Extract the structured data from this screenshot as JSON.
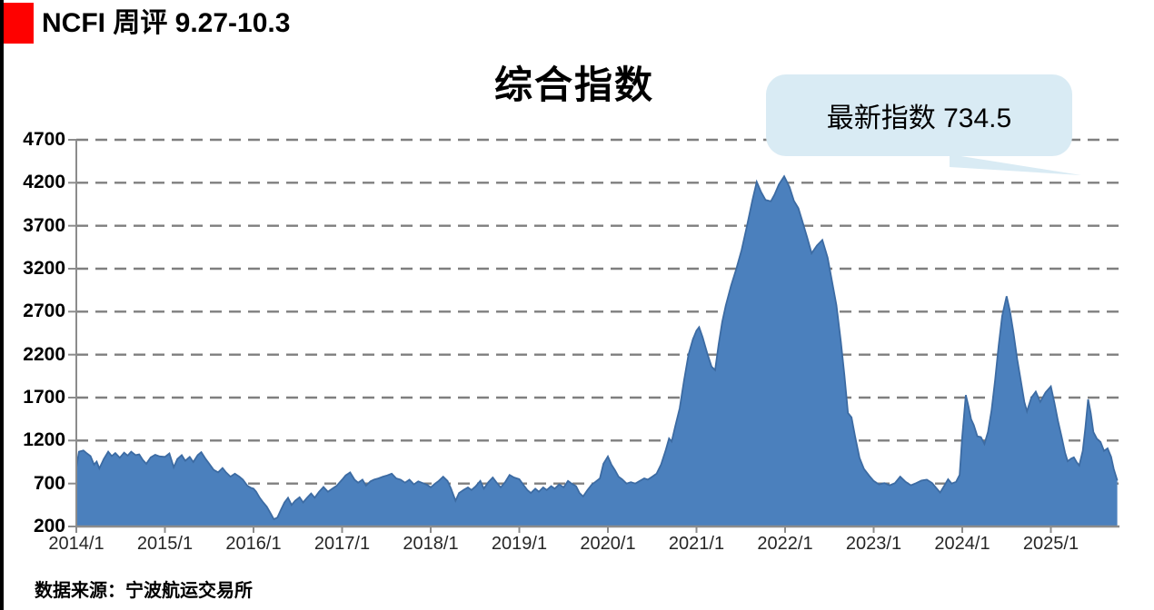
{
  "page": {
    "header": {
      "title": "NCFI 周评 9.27-10.3"
    },
    "source": "数据来源：宁波航运交易所"
  },
  "chart_data": {
    "type": "area",
    "title": "综合指数",
    "annotation": {
      "text": "最新指数 734.5",
      "latest_value": 734.5
    },
    "legend": "none",
    "grid": "horizontal-dashed",
    "x_axis": {
      "tick_labels": [
        "2014/1",
        "2015/1",
        "2016/1",
        "2017/1",
        "2018/1",
        "2019/1",
        "2020/1",
        "2021/1",
        "2022/1",
        "2023/1",
        "2024/1",
        "2025/1"
      ],
      "tick_years": [
        2014,
        2015,
        2016,
        2017,
        2018,
        2019,
        2020,
        2021,
        2022,
        2023,
        2024,
        2025
      ],
      "range_years": [
        2014.0,
        2025.8
      ]
    },
    "y_axis": {
      "ticks": [
        200,
        700,
        1200,
        1700,
        2200,
        2700,
        3200,
        3700,
        4200,
        4700
      ],
      "gridlines": [
        700,
        1200,
        1700,
        2200,
        2700,
        3200,
        3700,
        4200,
        4700
      ],
      "min": 200,
      "max": 4700
    },
    "colors": {
      "area_fill": "#4b80bd",
      "area_line": "#3c6ba3",
      "gridline": "#7f7f7f",
      "axis": "#8c8c8c",
      "callout_bg": "#d9ebf4",
      "red_square": "#fe0100",
      "x_label": "#262626",
      "y_label": "#000000"
    },
    "series": [
      {
        "name": "NCFI综合指数",
        "points": [
          [
            2014.0,
            880
          ],
          [
            2014.03,
            1070
          ],
          [
            2014.08,
            1085
          ],
          [
            2014.12,
            1050
          ],
          [
            2014.16,
            1020
          ],
          [
            2014.2,
            920
          ],
          [
            2014.23,
            955
          ],
          [
            2014.26,
            875
          ],
          [
            2014.31,
            985
          ],
          [
            2014.36,
            1070
          ],
          [
            2014.4,
            1020
          ],
          [
            2014.44,
            1055
          ],
          [
            2014.49,
            1000
          ],
          [
            2014.54,
            1060
          ],
          [
            2014.58,
            1025
          ],
          [
            2014.62,
            1070
          ],
          [
            2014.67,
            1030
          ],
          [
            2014.71,
            1040
          ],
          [
            2014.75,
            975
          ],
          [
            2014.79,
            930
          ],
          [
            2014.84,
            1005
          ],
          [
            2014.89,
            1035
          ],
          [
            2014.94,
            1015
          ],
          [
            2015.0,
            1010
          ],
          [
            2015.05,
            1050
          ],
          [
            2015.1,
            890
          ],
          [
            2015.14,
            985
          ],
          [
            2015.19,
            1030
          ],
          [
            2015.23,
            965
          ],
          [
            2015.28,
            1010
          ],
          [
            2015.32,
            950
          ],
          [
            2015.37,
            1030
          ],
          [
            2015.41,
            1065
          ],
          [
            2015.46,
            985
          ],
          [
            2015.5,
            930
          ],
          [
            2015.55,
            860
          ],
          [
            2015.6,
            830
          ],
          [
            2015.65,
            880
          ],
          [
            2015.69,
            830
          ],
          [
            2015.74,
            780
          ],
          [
            2015.79,
            815
          ],
          [
            2015.84,
            780
          ],
          [
            2015.88,
            745
          ],
          [
            2015.93,
            675
          ],
          [
            2015.97,
            650
          ],
          [
            2016.0,
            640
          ],
          [
            2016.03,
            605
          ],
          [
            2016.07,
            535
          ],
          [
            2016.11,
            480
          ],
          [
            2016.15,
            430
          ],
          [
            2016.19,
            360
          ],
          [
            2016.23,
            285
          ],
          [
            2016.27,
            305
          ],
          [
            2016.31,
            395
          ],
          [
            2016.35,
            480
          ],
          [
            2016.39,
            535
          ],
          [
            2016.43,
            450
          ],
          [
            2016.47,
            500
          ],
          [
            2016.52,
            540
          ],
          [
            2016.56,
            480
          ],
          [
            2016.6,
            530
          ],
          [
            2016.65,
            585
          ],
          [
            2016.69,
            535
          ],
          [
            2016.74,
            605
          ],
          [
            2016.79,
            660
          ],
          [
            2016.84,
            605
          ],
          [
            2016.89,
            640
          ],
          [
            2016.94,
            675
          ],
          [
            2017.0,
            745
          ],
          [
            2017.04,
            795
          ],
          [
            2017.09,
            830
          ],
          [
            2017.14,
            745
          ],
          [
            2017.18,
            710
          ],
          [
            2017.23,
            745
          ],
          [
            2017.27,
            675
          ],
          [
            2017.32,
            725
          ],
          [
            2017.36,
            745
          ],
          [
            2017.41,
            760
          ],
          [
            2017.46,
            780
          ],
          [
            2017.51,
            795
          ],
          [
            2017.56,
            815
          ],
          [
            2017.61,
            760
          ],
          [
            2017.66,
            745
          ],
          [
            2017.71,
            710
          ],
          [
            2017.76,
            745
          ],
          [
            2017.81,
            690
          ],
          [
            2017.86,
            725
          ],
          [
            2017.91,
            705
          ],
          [
            2017.96,
            685
          ],
          [
            2018.0,
            655
          ],
          [
            2018.05,
            700
          ],
          [
            2018.09,
            730
          ],
          [
            2018.14,
            780
          ],
          [
            2018.19,
            730
          ],
          [
            2018.23,
            640
          ],
          [
            2018.28,
            500
          ],
          [
            2018.32,
            590
          ],
          [
            2018.37,
            625
          ],
          [
            2018.42,
            655
          ],
          [
            2018.46,
            625
          ],
          [
            2018.51,
            670
          ],
          [
            2018.56,
            730
          ],
          [
            2018.6,
            640
          ],
          [
            2018.65,
            715
          ],
          [
            2018.7,
            770
          ],
          [
            2018.74,
            715
          ],
          [
            2018.79,
            655
          ],
          [
            2018.84,
            715
          ],
          [
            2018.89,
            800
          ],
          [
            2018.94,
            770
          ],
          [
            2019.0,
            750
          ],
          [
            2019.05,
            680
          ],
          [
            2019.09,
            625
          ],
          [
            2019.13,
            590
          ],
          [
            2019.18,
            640
          ],
          [
            2019.22,
            605
          ],
          [
            2019.27,
            655
          ],
          [
            2019.31,
            625
          ],
          [
            2019.36,
            670
          ],
          [
            2019.4,
            640
          ],
          [
            2019.45,
            690
          ],
          [
            2019.5,
            655
          ],
          [
            2019.55,
            730
          ],
          [
            2019.59,
            700
          ],
          [
            2019.64,
            670
          ],
          [
            2019.68,
            590
          ],
          [
            2019.72,
            550
          ],
          [
            2019.77,
            625
          ],
          [
            2019.82,
            690
          ],
          [
            2019.86,
            720
          ],
          [
            2019.91,
            760
          ],
          [
            2019.95,
            930
          ],
          [
            2020.0,
            1015
          ],
          [
            2020.04,
            920
          ],
          [
            2020.08,
            855
          ],
          [
            2020.12,
            780
          ],
          [
            2020.16,
            750
          ],
          [
            2020.21,
            700
          ],
          [
            2020.26,
            715
          ],
          [
            2020.31,
            700
          ],
          [
            2020.36,
            730
          ],
          [
            2020.41,
            760
          ],
          [
            2020.45,
            745
          ],
          [
            2020.5,
            780
          ],
          [
            2020.55,
            815
          ],
          [
            2020.6,
            920
          ],
          [
            2020.65,
            1080
          ],
          [
            2020.69,
            1225
          ],
          [
            2020.72,
            1190
          ],
          [
            2020.76,
            1365
          ],
          [
            2020.81,
            1575
          ],
          [
            2020.86,
            1900
          ],
          [
            2020.91,
            2200
          ],
          [
            2020.96,
            2380
          ],
          [
            2021.0,
            2480
          ],
          [
            2021.03,
            2520
          ],
          [
            2021.07,
            2400
          ],
          [
            2021.12,
            2220
          ],
          [
            2021.17,
            2060
          ],
          [
            2021.21,
            2020
          ],
          [
            2021.25,
            2320
          ],
          [
            2021.29,
            2580
          ],
          [
            2021.33,
            2770
          ],
          [
            2021.39,
            3000
          ],
          [
            2021.45,
            3200
          ],
          [
            2021.51,
            3420
          ],
          [
            2021.57,
            3700
          ],
          [
            2021.63,
            3990
          ],
          [
            2021.68,
            4210
          ],
          [
            2021.73,
            4090
          ],
          [
            2021.78,
            4000
          ],
          [
            2021.84,
            3985
          ],
          [
            2021.88,
            4060
          ],
          [
            2021.93,
            4180
          ],
          [
            2021.99,
            4275
          ],
          [
            2022.05,
            4150
          ],
          [
            2022.1,
            3990
          ],
          [
            2022.15,
            3905
          ],
          [
            2022.19,
            3770
          ],
          [
            2022.25,
            3560
          ],
          [
            2022.3,
            3380
          ],
          [
            2022.36,
            3470
          ],
          [
            2022.42,
            3535
          ],
          [
            2022.48,
            3330
          ],
          [
            2022.53,
            3050
          ],
          [
            2022.58,
            2775
          ],
          [
            2022.63,
            2350
          ],
          [
            2022.67,
            1960
          ],
          [
            2022.71,
            1520
          ],
          [
            2022.75,
            1470
          ],
          [
            2022.79,
            1250
          ],
          [
            2022.84,
            1000
          ],
          [
            2022.89,
            870
          ],
          [
            2022.95,
            790
          ],
          [
            2023.0,
            730
          ],
          [
            2023.06,
            690
          ],
          [
            2023.12,
            705
          ],
          [
            2023.18,
            680
          ],
          [
            2023.24,
            705
          ],
          [
            2023.3,
            780
          ],
          [
            2023.36,
            720
          ],
          [
            2023.42,
            680
          ],
          [
            2023.48,
            705
          ],
          [
            2023.54,
            735
          ],
          [
            2023.6,
            745
          ],
          [
            2023.66,
            705
          ],
          [
            2023.7,
            655
          ],
          [
            2023.75,
            595
          ],
          [
            2023.8,
            680
          ],
          [
            2023.84,
            750
          ],
          [
            2023.88,
            700
          ],
          [
            2023.93,
            720
          ],
          [
            2023.97,
            800
          ],
          [
            2024.0,
            1250
          ],
          [
            2024.04,
            1730
          ],
          [
            2024.07,
            1600
          ],
          [
            2024.1,
            1450
          ],
          [
            2024.13,
            1380
          ],
          [
            2024.17,
            1250
          ],
          [
            2024.21,
            1240
          ],
          [
            2024.25,
            1160
          ],
          [
            2024.29,
            1300
          ],
          [
            2024.33,
            1550
          ],
          [
            2024.37,
            1900
          ],
          [
            2024.41,
            2300
          ],
          [
            2024.45,
            2650
          ],
          [
            2024.5,
            2880
          ],
          [
            2024.54,
            2700
          ],
          [
            2024.58,
            2445
          ],
          [
            2024.62,
            2150
          ],
          [
            2024.66,
            1900
          ],
          [
            2024.7,
            1650
          ],
          [
            2024.73,
            1540
          ],
          [
            2024.78,
            1700
          ],
          [
            2024.83,
            1770
          ],
          [
            2024.88,
            1650
          ],
          [
            2024.94,
            1760
          ],
          [
            2025.0,
            1830
          ],
          [
            2025.04,
            1640
          ],
          [
            2025.08,
            1430
          ],
          [
            2025.12,
            1250
          ],
          [
            2025.16,
            1060
          ],
          [
            2025.19,
            960
          ],
          [
            2025.23,
            990
          ],
          [
            2025.26,
            1005
          ],
          [
            2025.29,
            950
          ],
          [
            2025.32,
            910
          ],
          [
            2025.36,
            1080
          ],
          [
            2025.39,
            1350
          ],
          [
            2025.42,
            1680
          ],
          [
            2025.45,
            1520
          ],
          [
            2025.48,
            1300
          ],
          [
            2025.52,
            1220
          ],
          [
            2025.56,
            1185
          ],
          [
            2025.6,
            1080
          ],
          [
            2025.64,
            1110
          ],
          [
            2025.68,
            1010
          ],
          [
            2025.71,
            870
          ],
          [
            2025.75,
            734.5
          ]
        ]
      }
    ]
  }
}
